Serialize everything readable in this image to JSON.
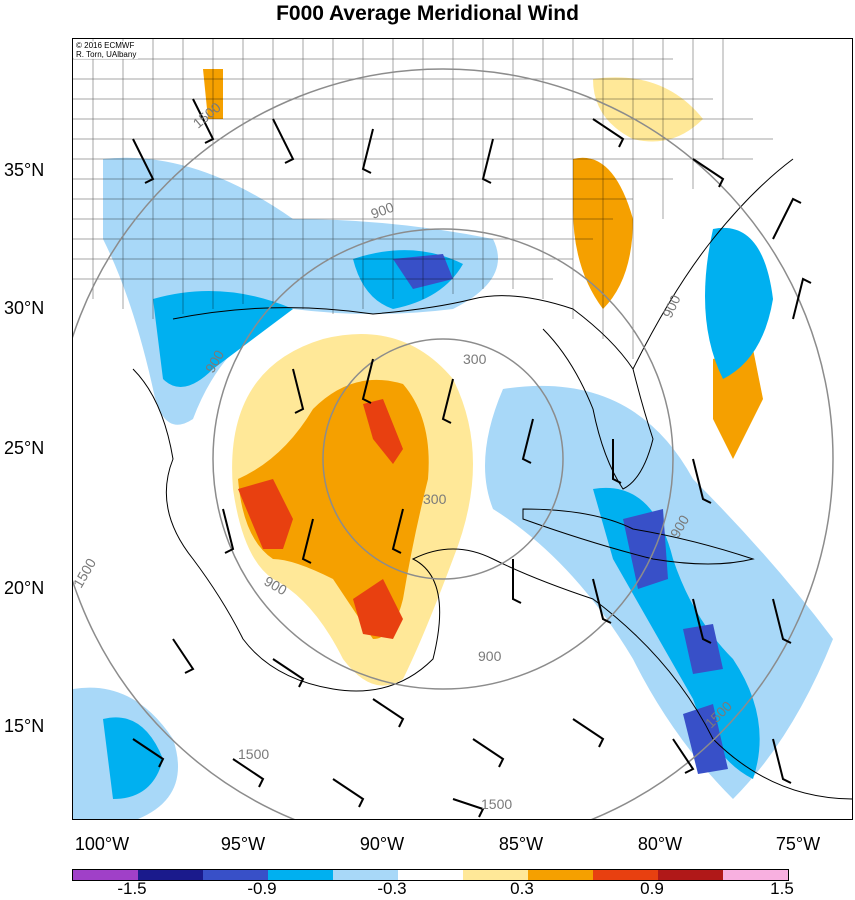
{
  "title": "F000 Average Meridional Wind",
  "credit": [
    "© 2016 ECMWF",
    "R. Torn, UAlbany"
  ],
  "lat_labels": [
    "35°N",
    "30°N",
    "25°N",
    "20°N",
    "15°N"
  ],
  "lon_labels": [
    "100°W",
    "95°W",
    "90°W",
    "85°W",
    "80°W",
    "75°W"
  ],
  "contour_labels": [
    "1500",
    "900",
    "300",
    "300",
    "900",
    "900",
    "900",
    "1500",
    "1500",
    "1500",
    "900",
    "900",
    "1500"
  ],
  "colorbar": {
    "labels": [
      "-1.5",
      "-0.9",
      "-0.3",
      "0.3",
      "0.9",
      "1.5"
    ],
    "colors": [
      "#a040c8",
      "#1a1a8c",
      "#3850c8",
      "#00b0f0",
      "#a8d8f8",
      "#ffffff",
      "#ffe898",
      "#f5a000",
      "#e84010",
      "#b01818",
      "#f8b0e0"
    ]
  }
}
